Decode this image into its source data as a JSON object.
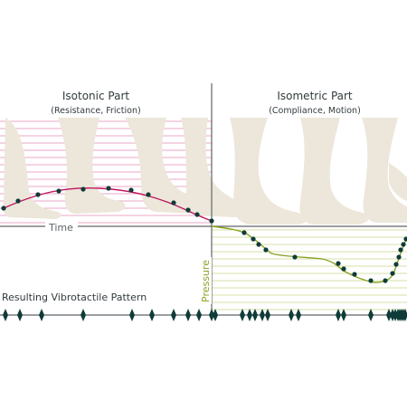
{
  "sections": {
    "isotonic": {
      "title": "Isotonic Part",
      "subtitle": "(Resistance, Friction)"
    },
    "isometric": {
      "title": "Isometric Part",
      "subtitle": "(Compliance, Motion)"
    }
  },
  "axes": {
    "time_label": "Time",
    "pressure_label": "Pressure"
  },
  "pattern_label": "Resulting Vibrotactile Pattern",
  "colors": {
    "background": "#ffffff",
    "foot_fill": "#ece7da",
    "isotonic_curve": "#c0145e",
    "isotonic_lines": "#e58ab4",
    "isometric_curve": "#8aa324",
    "isometric_lines": "#c6d98a",
    "dots": "#0f3b38",
    "axis": "#5f6468",
    "title_text": "#333a3e",
    "pressure_text": "#8aa324"
  },
  "icons": [
    "foot-step-icon",
    "vibration-pulse-icon"
  ]
}
